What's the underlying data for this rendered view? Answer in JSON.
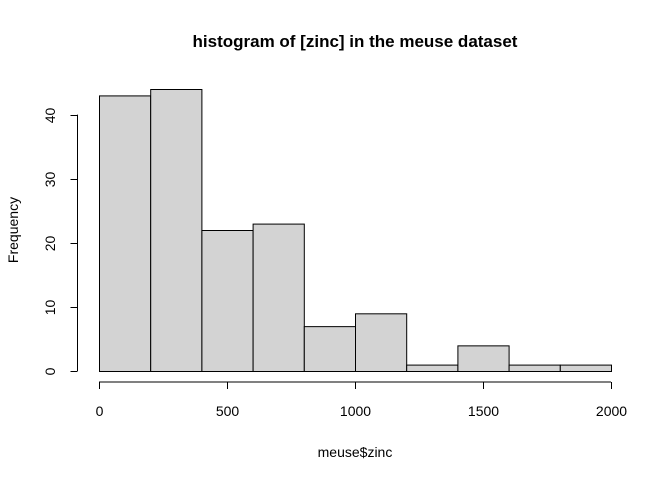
{
  "chart_data": {
    "type": "bar",
    "title": "histogram of [zinc] in the meuse dataset",
    "xlabel": "meuse$zinc",
    "ylabel": "Frequency",
    "bin_edges": [
      0,
      200,
      400,
      600,
      800,
      1000,
      1200,
      1400,
      1600,
      1800,
      2000
    ],
    "values": [
      43,
      44,
      22,
      23,
      7,
      9,
      1,
      4,
      1,
      1
    ],
    "xlim": [
      0,
      2000
    ],
    "ylim": [
      0,
      44
    ],
    "x_ticks": [
      0,
      500,
      1000,
      1500,
      2000
    ],
    "y_ticks": [
      0,
      10,
      20,
      30,
      40
    ],
    "grid": false,
    "colors": {
      "bar_fill": "#d3d3d3",
      "bar_stroke": "#000000"
    }
  }
}
